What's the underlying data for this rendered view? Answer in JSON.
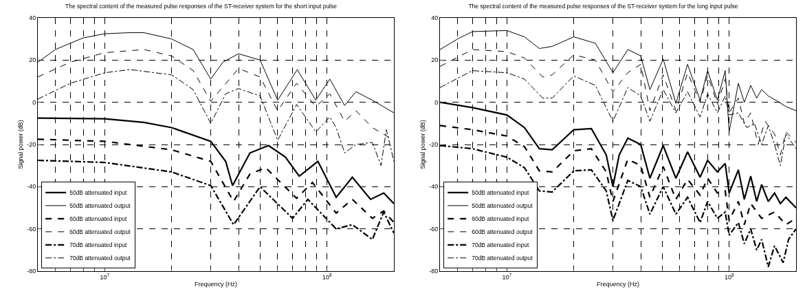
{
  "chart_data": [
    {
      "type": "line",
      "title": "The spectral content of the measured pulse responses of the ST-receiver system for the short input pulse",
      "xlabel": "Frequency (Hz)",
      "ylabel": "Signal power (dB)",
      "log": "x",
      "grid": true,
      "legend": "bottom left",
      "marker": "none",
      "xlim": [
        5000000,
        200000000
      ],
      "xticks": [
        {
          "value": 5000000,
          "label": null
        },
        {
          "value": 6000000,
          "label": null
        },
        {
          "value": 7000000,
          "label": null
        },
        {
          "value": 8000000,
          "label": null
        },
        {
          "value": 9000000,
          "label": null
        },
        {
          "value": 10000000,
          "label": "10$^{7}$"
        },
        {
          "value": 20000000,
          "label": null
        },
        {
          "value": 30000000,
          "label": null
        },
        {
          "value": 40000000,
          "label": null
        },
        {
          "value": 50000000,
          "label": null
        },
        {
          "value": 60000000,
          "label": null
        },
        {
          "value": 70000000,
          "label": null
        },
        {
          "value": 80000000,
          "label": null
        },
        {
          "value": 90000000,
          "label": null
        },
        {
          "value": 100000000,
          "label": "10$^{8}$"
        },
        {
          "value": 200000000,
          "label": null
        }
      ],
      "ylim": [
        -80,
        40
      ],
      "yticks": [
        -80,
        -60,
        -40,
        -20,
        0,
        20,
        40
      ],
      "series": [
        {
          "name": "50dB attenuated input",
          "color": "#000000",
          "line_style": "solid",
          "x": [
            5000000.0,
            10000000.0,
            15000000.0,
            20000000.0,
            30000000.0,
            35000000.0,
            37600000.0,
            45000000.0,
            54600000.0,
            65000000.0,
            75000000.0,
            91000000.0,
            110000000.0,
            130000000.0,
            157000000.0,
            180000000.0,
            200000000.0
          ],
          "values": [
            -7.5,
            -7.8,
            -9.5,
            -12,
            -18.5,
            -28,
            -39.5,
            -24,
            -20.5,
            -26,
            -35,
            -28,
            -45,
            -35.5,
            -46,
            -43,
            -48
          ]
        },
        {
          "name": "50dB attenuated output",
          "color": "#000000",
          "line_style": "solid",
          "x": [
            5000000.0,
            6000000.0,
            7000000.0,
            8000000.0,
            10000000.0,
            13000000.0,
            15000000.0,
            20000000.0,
            25000000.0,
            30000000.0,
            34000000.0,
            40000000.0,
            50000000.0,
            60000000.0,
            73500000.0,
            89000000.0,
            103000000.0,
            120000000.0,
            135000000.0,
            160000000.0,
            200000000.0
          ],
          "values": [
            19,
            25,
            28,
            30.5,
            32.5,
            33,
            33,
            30,
            25,
            11,
            19,
            23,
            20,
            1,
            15.5,
            1,
            11,
            -1.5,
            5,
            1,
            -5
          ]
        },
        {
          "name": "60dB attenuated input",
          "color": "#000000",
          "line_style": "dashed",
          "x": [
            5000000.0,
            10000000.0,
            20000000.0,
            30000000.0,
            38000000.0,
            45000000.0,
            53000000.0,
            73000000.0,
            86000000.0,
            110000000.0,
            130000000.0,
            160000000.0,
            180000000.0,
            200000000.0
          ],
          "values": [
            -17.5,
            -18.5,
            -22.5,
            -28,
            -47,
            -34,
            -31,
            -45.5,
            -38,
            -52.5,
            -46,
            -55,
            -51.5,
            -57
          ]
        },
        {
          "name": "60dB attenuated output",
          "color": "#000000",
          "line_style": "dashed",
          "x": [
            5000000.0,
            7000000.0,
            10000000.0,
            15000000.0,
            20000000.0,
            25000000.0,
            30000000.0,
            40000000.0,
            50000000.0,
            60000000.0,
            73000000.0,
            89000000.0,
            103000000.0,
            120000000.0,
            135000000.0,
            160000000.0,
            200000000.0
          ],
          "values": [
            12,
            19,
            23.5,
            25,
            22,
            15,
            0.5,
            16,
            12,
            -4,
            9,
            -2,
            4,
            -9,
            -4,
            -12,
            -18
          ]
        },
        {
          "name": "70dB attenuated input",
          "color": "#000000",
          "line_style": "dashdot",
          "x": [
            5000000.0,
            10000000.0,
            20000000.0,
            30000000.0,
            38000000.0,
            50000000.0,
            70000000.0,
            82000000.0,
            110000000.0,
            130000000.0,
            160000000.0,
            180000000.0,
            200000000.0
          ],
          "values": [
            -27.5,
            -28.5,
            -33,
            -39.5,
            -58,
            -40,
            -55,
            -46,
            -60,
            -58,
            -65,
            -52,
            -62
          ]
        },
        {
          "name": "70dB attenuated output",
          "color": "#000000",
          "line_style": "dashdot",
          "x": [
            5000000.0,
            7000000.0,
            10000000.0,
            13000000.0,
            20000000.0,
            25000000.0,
            30000000.0,
            35000000.0,
            40000000.0,
            50000000.0,
            60000000.0,
            73000000.0,
            89000000.0,
            103000000.0,
            110000000.0,
            120000000.0,
            135000000.0,
            160000000.0,
            175000000.0,
            185000000.0,
            200000000.0
          ],
          "values": [
            1.5,
            9,
            14,
            15.5,
            13,
            6,
            -10,
            4,
            6.5,
            3,
            -18,
            -1,
            -14,
            -7,
            -12,
            -24,
            -20,
            -19,
            -30,
            -13,
            -28
          ]
        }
      ]
    },
    {
      "type": "line",
      "title": "The spectral content of the measured pulse responses of the ST-receiver system for the long input pulse",
      "xlabel": "Frequency (Hz)",
      "ylabel": "Signal power (dB)",
      "log": "x",
      "grid": true,
      "legend": "bottom left",
      "marker": "none",
      "xlim": [
        5000000,
        200000000
      ],
      "xticks": [
        {
          "value": 5000000,
          "label": null
        },
        {
          "value": 6000000,
          "label": null
        },
        {
          "value": 7000000,
          "label": null
        },
        {
          "value": 8000000,
          "label": null
        },
        {
          "value": 9000000,
          "label": null
        },
        {
          "value": 10000000,
          "label": "10$^{7}$"
        },
        {
          "value": 20000000,
          "label": null
        },
        {
          "value": 30000000,
          "label": null
        },
        {
          "value": 40000000,
          "label": null
        },
        {
          "value": 50000000,
          "label": null
        },
        {
          "value": 60000000,
          "label": null
        },
        {
          "value": 70000000,
          "label": null
        },
        {
          "value": 80000000,
          "label": null
        },
        {
          "value": 90000000,
          "label": null
        },
        {
          "value": 100000000,
          "label": "10$^{8}$"
        },
        {
          "value": 200000000,
          "label": null
        }
      ],
      "ylim": [
        -80,
        40
      ],
      "yticks": [
        -80,
        -60,
        -40,
        -20,
        0,
        20,
        40
      ],
      "series": [
        {
          "name": "50dB attenuated input",
          "color": "#000000",
          "line_style": "solid",
          "x": [
            5000000.0,
            7000000.0,
            10000000.0,
            12000000.0,
            14000000.0,
            16000000.0,
            20000000.0,
            24000000.0,
            28000000.0,
            30000000.0,
            32000000.0,
            35000000.0,
            40000000.0,
            44000000.0,
            50500000.0,
            57600000.0,
            65000000.0,
            74000000.0,
            80000000.0,
            88500000.0,
            96000000.0,
            100000000.0,
            110000000.0,
            117000000.0,
            125000000.0,
            133000000.0,
            140000000.0,
            150000000.0,
            160000000.0,
            170000000.0,
            180000000.0,
            200000000.0
          ],
          "values": [
            0,
            -2.5,
            -6,
            -12,
            -22,
            -22.5,
            -13,
            -12.5,
            -25,
            -40,
            -25,
            -17,
            -20,
            -36,
            -20.5,
            -36,
            -23.5,
            -35.5,
            -27.5,
            -33,
            -29,
            -43,
            -32,
            -46,
            -35,
            -47,
            -39,
            -47,
            -43,
            -48,
            -45,
            -50
          ]
        },
        {
          "name": "50dB attenuated output",
          "color": "#000000",
          "line_style": "solid",
          "x": [
            5000000.0,
            6000000.0,
            7000000.0,
            10000000.0,
            12000000.0,
            14000000.0,
            16000000.0,
            20000000.0,
            25000000.0,
            30000000.0,
            35000000.0,
            40000000.0,
            44000000.0,
            50500000.0,
            57600000.0,
            65000000.0,
            74000000.0,
            80000000.0,
            88500000.0,
            96000000.0,
            100000000.0,
            110000000.0,
            117000000.0,
            125000000.0,
            133000000.0,
            140000000.0,
            150000000.0,
            165000000.0,
            180000000.0,
            200000000.0
          ],
          "values": [
            25,
            30,
            33.5,
            34,
            31,
            25.5,
            26.5,
            31,
            28,
            14,
            25,
            22,
            6,
            20.5,
            -0.5,
            18,
            1,
            15,
            1,
            15,
            -14,
            9,
            0,
            8,
            2,
            6,
            3,
            0.5,
            -2,
            -4
          ]
        },
        {
          "name": "60dB attenuated input",
          "color": "#000000",
          "line_style": "dashed",
          "x": [
            5000000.0,
            7000000.0,
            10000000.0,
            12000000.0,
            14000000.0,
            16000000.0,
            20000000.0,
            24000000.0,
            28000000.0,
            30000000.0,
            35000000.0,
            40000000.0,
            44000000.0,
            50500000.0,
            57600000.0,
            65000000.0,
            74000000.0,
            80000000.0,
            88500000.0,
            96000000.0,
            100000000.0,
            110000000.0,
            117000000.0,
            125000000.0,
            140000000.0,
            160000000.0,
            180000000.0,
            200000000.0
          ],
          "values": [
            -11,
            -13,
            -16,
            -21,
            -32.5,
            -33,
            -23,
            -22,
            -33,
            -47,
            -27,
            -30,
            -45,
            -30.5,
            -46,
            -36.5,
            -44,
            -36,
            -43,
            -42,
            -56,
            -47,
            -58,
            -48,
            -55,
            -52,
            -58,
            -55
          ]
        },
        {
          "name": "60dB attenuated output",
          "color": "#000000",
          "line_style": "dashed",
          "x": [
            5000000.0,
            7000000.0,
            10000000.0,
            12000000.0,
            14500000.0,
            16000000.0,
            20000000.0,
            25000000.0,
            30000000.0,
            35000000.0,
            40000000.0,
            44000000.0,
            50500000.0,
            57600000.0,
            65000000.0,
            74000000.0,
            80000000.0,
            88500000.0,
            96000000.0,
            100000000.0,
            110000000.0,
            117000000.0,
            125000000.0,
            135000000.0,
            145000000.0,
            160000000.0,
            170000000.0,
            180000000.0,
            200000000.0
          ],
          "values": [
            17,
            25,
            24,
            21,
            12,
            13,
            22.5,
            20,
            5,
            14,
            18,
            -4,
            13,
            -4,
            14,
            0,
            13,
            -1,
            11,
            -5,
            2,
            -10,
            -5,
            -20,
            -9,
            -15,
            -25,
            -14,
            -19
          ]
        },
        {
          "name": "70dB attenuated input",
          "color": "#000000",
          "line_style": "dashdot",
          "x": [
            5000000.0,
            7000000.0,
            10000000.0,
            12000000.0,
            14000000.0,
            16000000.0,
            20000000.0,
            24000000.0,
            28000000.0,
            30000000.0,
            35000000.0,
            40000000.0,
            44000000.0,
            50500000.0,
            57600000.0,
            65000000.0,
            74000000.0,
            80000000.0,
            88500000.0,
            96000000.0,
            100000000.0,
            110000000.0,
            117000000.0,
            125000000.0,
            133000000.0,
            140000000.0,
            150000000.0,
            160000000.0,
            175000000.0,
            185000000.0,
            200000000.0
          ],
          "values": [
            -20.5,
            -22,
            -26,
            -31,
            -42,
            -42.5,
            -32.5,
            -32,
            -42,
            -56,
            -37,
            -40,
            -53,
            -40,
            -53,
            -45,
            -57,
            -47,
            -55,
            -52,
            -63,
            -57,
            -67,
            -60,
            -70,
            -65,
            -78,
            -68,
            -76,
            -65,
            -60
          ]
        },
        {
          "name": "70dB attenuated output",
          "color": "#000000",
          "line_style": "dashdot",
          "x": [
            5000000.0,
            7000000.0,
            10000000.0,
            12000000.0,
            14500000.0,
            16000000.0,
            20000000.0,
            25000000.0,
            30000000.0,
            35000000.0,
            40000000.0,
            44000000.0,
            50500000.0,
            57600000.0,
            65000000.0,
            74000000.0,
            80000000.0,
            88500000.0,
            96000000.0,
            100000000.0,
            110000000.0,
            120000000.0,
            130000000.0,
            140000000.0,
            150000000.0,
            160000000.0,
            170000000.0,
            180000000.0,
            200000000.0
          ],
          "values": [
            7,
            15,
            14,
            11,
            2,
            2,
            12.5,
            8,
            -9,
            7,
            3,
            -9,
            6,
            -5,
            5,
            -7,
            4,
            -5,
            3,
            -6,
            -5,
            -12,
            -10,
            -20,
            -11,
            -20,
            -30,
            -15,
            -22
          ]
        }
      ]
    }
  ]
}
